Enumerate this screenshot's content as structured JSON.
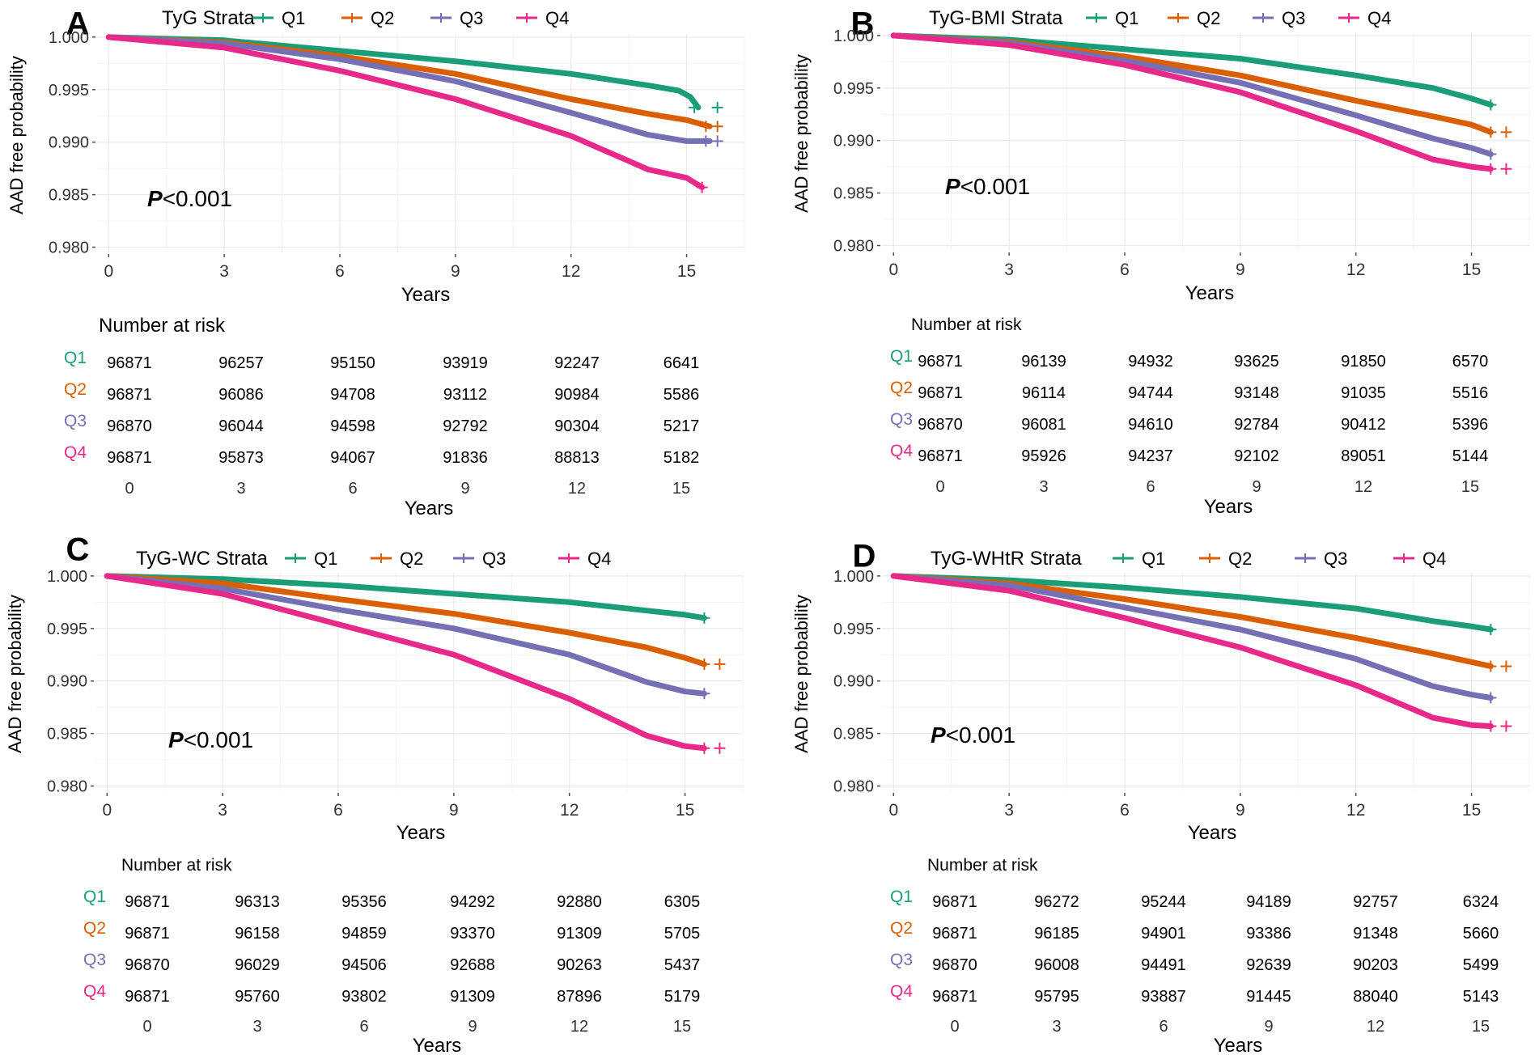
{
  "colors": {
    "Q1": "#1b9e77",
    "Q2": "#d95f02",
    "Q3": "#7570b3",
    "Q4": "#e7298a",
    "grid": "#ebebeb",
    "text": "#000000",
    "tick": "#4d4d4d"
  },
  "chart_data": [
    {
      "type": "line",
      "panel_letter": "A",
      "legend_title": "TyG Strata",
      "legend_position": "top",
      "series_names": [
        "Q1",
        "Q2",
        "Q3",
        "Q4"
      ],
      "ylabel": "AAD free probability",
      "xlabel": "Years",
      "x_ticks": [
        0,
        3,
        6,
        9,
        12,
        15
      ],
      "y_ticks": [
        1.0,
        0.995,
        0.99,
        0.985,
        0.98
      ],
      "y_tick_labels": [
        "1.000",
        "0.995",
        "0.990",
        "0.985",
        "0.980"
      ],
      "xlim": [
        -0.3,
        16.5
      ],
      "ylim": [
        0.9795,
        1.0003
      ],
      "grid": true,
      "p_label": "P",
      "p_rest": "<0.001",
      "series": [
        {
          "name": "Q1",
          "end": 15.3,
          "censor": [
            15.2,
            15.8
          ],
          "points": [
            [
              0,
              1.0
            ],
            [
              3,
              0.9997
            ],
            [
              6,
              0.9987
            ],
            [
              9,
              0.9977
            ],
            [
              12,
              0.9965
            ],
            [
              14,
              0.9954
            ],
            [
              14.8,
              0.9949
            ],
            [
              15.1,
              0.9943
            ],
            [
              15.3,
              0.9933
            ]
          ]
        },
        {
          "name": "Q2",
          "end": 15.6,
          "censor": [
            15.5,
            15.8
          ],
          "points": [
            [
              0,
              1.0
            ],
            [
              3,
              0.9995
            ],
            [
              6,
              0.9982
            ],
            [
              9,
              0.9965
            ],
            [
              12,
              0.9941
            ],
            [
              14,
              0.9927
            ],
            [
              15,
              0.9921
            ],
            [
              15.6,
              0.9915
            ]
          ]
        },
        {
          "name": "Q3",
          "end": 15.6,
          "censor": [
            15.5,
            15.8
          ],
          "points": [
            [
              0,
              1.0
            ],
            [
              3,
              0.9994
            ],
            [
              6,
              0.9979
            ],
            [
              9,
              0.9958
            ],
            [
              12,
              0.9928
            ],
            [
              14,
              0.9907
            ],
            [
              15,
              0.9901
            ],
            [
              15.6,
              0.9901
            ]
          ]
        },
        {
          "name": "Q4",
          "end": 15.4,
          "censor": [
            15.4
          ],
          "points": [
            [
              0,
              1.0
            ],
            [
              3,
              0.999
            ],
            [
              6,
              0.9968
            ],
            [
              9,
              0.9941
            ],
            [
              12,
              0.9906
            ],
            [
              14,
              0.9874
            ],
            [
              15,
              0.9866
            ],
            [
              15.4,
              0.9857
            ]
          ]
        }
      ],
      "risk_table": {
        "title": "Number at risk",
        "rows": [
          {
            "label": "Q1",
            "values": [
              "96871",
              "96257",
              "95150",
              "93919",
              "92247",
              "6641"
            ]
          },
          {
            "label": "Q2",
            "values": [
              "96871",
              "96086",
              "94708",
              "93112",
              "90984",
              "5586"
            ]
          },
          {
            "label": "Q3",
            "values": [
              "96870",
              "96044",
              "94598",
              "92792",
              "90304",
              "5217"
            ]
          },
          {
            "label": "Q4",
            "values": [
              "96871",
              "95873",
              "94067",
              "91836",
              "88813",
              "5182"
            ]
          }
        ],
        "x_ticks": [
          "0",
          "3",
          "6",
          "9",
          "12",
          "15"
        ],
        "xlabel": "Years"
      }
    },
    {
      "type": "line",
      "panel_letter": "B",
      "legend_title": "TyG-BMI Strata",
      "legend_position": "top",
      "series_names": [
        "Q1",
        "Q2",
        "Q3",
        "Q4"
      ],
      "ylabel": "AAD free probability",
      "xlabel": "Years",
      "x_ticks": [
        0,
        3,
        6,
        9,
        12,
        15
      ],
      "y_ticks": [
        1.0,
        0.995,
        0.99,
        0.985,
        0.98
      ],
      "y_tick_labels": [
        "1.000",
        "0.995",
        "0.990",
        "0.985",
        "0.980"
      ],
      "xlim": [
        -0.3,
        16.5
      ],
      "ylim": [
        0.9795,
        1.0003
      ],
      "grid": true,
      "p_label": "P",
      "p_rest": "<0.001",
      "series": [
        {
          "name": "Q1",
          "end": 15.5,
          "censor": [
            15.5
          ],
          "points": [
            [
              0,
              1.0
            ],
            [
              3,
              0.9996
            ],
            [
              6,
              0.9987
            ],
            [
              9,
              0.9978
            ],
            [
              12,
              0.9962
            ],
            [
              14,
              0.995
            ],
            [
              15,
              0.994
            ],
            [
              15.5,
              0.9934
            ]
          ]
        },
        {
          "name": "Q2",
          "end": 15.5,
          "censor": [
            15.5,
            15.9
          ],
          "points": [
            [
              0,
              1.0
            ],
            [
              3,
              0.9994
            ],
            [
              6,
              0.998
            ],
            [
              9,
              0.9962
            ],
            [
              12,
              0.9938
            ],
            [
              14,
              0.9923
            ],
            [
              15,
              0.9915
            ],
            [
              15.5,
              0.9908
            ]
          ]
        },
        {
          "name": "Q3",
          "end": 15.5,
          "censor": [
            15.5
          ],
          "points": [
            [
              0,
              1.0
            ],
            [
              3,
              0.9993
            ],
            [
              6,
              0.9976
            ],
            [
              9,
              0.9955
            ],
            [
              12,
              0.9924
            ],
            [
              14,
              0.9902
            ],
            [
              15,
              0.9893
            ],
            [
              15.5,
              0.9887
            ]
          ]
        },
        {
          "name": "Q4",
          "end": 15.5,
          "censor": [
            15.5,
            15.9
          ],
          "points": [
            [
              0,
              1.0
            ],
            [
              3,
              0.9991
            ],
            [
              6,
              0.9972
            ],
            [
              9,
              0.9946
            ],
            [
              12,
              0.9909
            ],
            [
              14,
              0.9882
            ],
            [
              15,
              0.9875
            ],
            [
              15.5,
              0.9873
            ]
          ]
        }
      ],
      "risk_table": {
        "title": "Number at risk",
        "rows": [
          {
            "label": "Q1",
            "values": [
              "96871",
              "96139",
              "94932",
              "93625",
              "91850",
              "6570"
            ]
          },
          {
            "label": "Q2",
            "values": [
              "96871",
              "96114",
              "94744",
              "93148",
              "91035",
              "5516"
            ]
          },
          {
            "label": "Q3",
            "values": [
              "96870",
              "96081",
              "94610",
              "92784",
              "90412",
              "5396"
            ]
          },
          {
            "label": "Q4",
            "values": [
              "96871",
              "95926",
              "94237",
              "92102",
              "89051",
              "5144"
            ]
          }
        ],
        "x_ticks": [
          "0",
          "3",
          "6",
          "9",
          "12",
          "15"
        ],
        "xlabel": "Years"
      }
    },
    {
      "type": "line",
      "panel_letter": "C",
      "legend_title": "TyG-WC Strata",
      "legend_position": "top",
      "series_names": [
        "Q1",
        "Q2",
        "Q3",
        "Q4"
      ],
      "ylabel": "AAD free probability",
      "xlabel": "Years",
      "x_ticks": [
        0,
        3,
        6,
        9,
        12,
        15
      ],
      "y_ticks": [
        1.0,
        0.995,
        0.99,
        0.985,
        0.98
      ],
      "y_tick_labels": [
        "1.000",
        "0.995",
        "0.990",
        "0.985",
        "0.980"
      ],
      "xlim": [
        -0.3,
        16.5
      ],
      "ylim": [
        0.9795,
        1.0003
      ],
      "grid": true,
      "p_label": "P",
      "p_rest": "<0.001",
      "series": [
        {
          "name": "Q1",
          "end": 15.5,
          "censor": [
            15.5
          ],
          "points": [
            [
              0,
              1.0
            ],
            [
              3,
              0.9997
            ],
            [
              6,
              0.9991
            ],
            [
              9,
              0.9983
            ],
            [
              12,
              0.9975
            ],
            [
              14,
              0.9967
            ],
            [
              15,
              0.9963
            ],
            [
              15.5,
              0.996
            ]
          ]
        },
        {
          "name": "Q2",
          "end": 15.5,
          "censor": [
            15.5,
            15.9
          ],
          "points": [
            [
              0,
              1.0
            ],
            [
              3,
              0.9993
            ],
            [
              6,
              0.9978
            ],
            [
              9,
              0.9964
            ],
            [
              12,
              0.9946
            ],
            [
              14,
              0.9932
            ],
            [
              15,
              0.9922
            ],
            [
              15.5,
              0.9916
            ]
          ]
        },
        {
          "name": "Q3",
          "end": 15.5,
          "censor": [
            15.5
          ],
          "points": [
            [
              0,
              1.0
            ],
            [
              3,
              0.9988
            ],
            [
              6,
              0.9968
            ],
            [
              9,
              0.995
            ],
            [
              12,
              0.9925
            ],
            [
              14,
              0.9899
            ],
            [
              15,
              0.989
            ],
            [
              15.5,
              0.9888
            ]
          ]
        },
        {
          "name": "Q4",
          "end": 15.5,
          "censor": [
            15.5,
            15.9
          ],
          "points": [
            [
              0,
              1.0
            ],
            [
              3,
              0.9983
            ],
            [
              6,
              0.9954
            ],
            [
              9,
              0.9925
            ],
            [
              12,
              0.9883
            ],
            [
              14,
              0.9848
            ],
            [
              15,
              0.9838
            ],
            [
              15.5,
              0.9836
            ]
          ]
        }
      ],
      "risk_table": {
        "title": "Number at risk",
        "rows": [
          {
            "label": "Q1",
            "values": [
              "96871",
              "96313",
              "95356",
              "94292",
              "92880",
              "6305"
            ]
          },
          {
            "label": "Q2",
            "values": [
              "96871",
              "96158",
              "94859",
              "93370",
              "91309",
              "5705"
            ]
          },
          {
            "label": "Q3",
            "values": [
              "96870",
              "96029",
              "94506",
              "92688",
              "90263",
              "5437"
            ]
          },
          {
            "label": "Q4",
            "values": [
              "96871",
              "95760",
              "93802",
              "91309",
              "87896",
              "5179"
            ]
          }
        ],
        "x_ticks": [
          "0",
          "3",
          "6",
          "9",
          "12",
          "15"
        ],
        "xlabel": "Years"
      }
    },
    {
      "type": "line",
      "panel_letter": "D",
      "legend_title": "TyG-WHtR Strata",
      "legend_position": "top",
      "series_names": [
        "Q1",
        "Q2",
        "Q3",
        "Q4"
      ],
      "ylabel": "AAD free probability",
      "xlabel": "Years",
      "x_ticks": [
        0,
        3,
        6,
        9,
        12,
        15
      ],
      "y_ticks": [
        1.0,
        0.995,
        0.99,
        0.985,
        0.98
      ],
      "y_tick_labels": [
        "1.000",
        "0.995",
        "0.990",
        "0.985",
        "0.980"
      ],
      "xlim": [
        -0.3,
        16.5
      ],
      "ylim": [
        0.9795,
        1.0003
      ],
      "grid": true,
      "p_label": "P",
      "p_rest": "<0.001",
      "series": [
        {
          "name": "Q1",
          "end": 15.5,
          "censor": [
            15.5
          ],
          "points": [
            [
              0,
              1.0
            ],
            [
              3,
              0.9996
            ],
            [
              6,
              0.9989
            ],
            [
              9,
              0.998
            ],
            [
              12,
              0.9969
            ],
            [
              14,
              0.9957
            ],
            [
              15,
              0.9952
            ],
            [
              15.5,
              0.9949
            ]
          ]
        },
        {
          "name": "Q2",
          "end": 15.5,
          "censor": [
            15.5,
            15.9
          ],
          "points": [
            [
              0,
              1.0
            ],
            [
              3,
              0.9993
            ],
            [
              6,
              0.9978
            ],
            [
              9,
              0.9961
            ],
            [
              12,
              0.9941
            ],
            [
              14,
              0.9926
            ],
            [
              15,
              0.9918
            ],
            [
              15.5,
              0.9914
            ]
          ]
        },
        {
          "name": "Q3",
          "end": 15.5,
          "censor": [
            15.5
          ],
          "points": [
            [
              0,
              1.0
            ],
            [
              3,
              0.9991
            ],
            [
              6,
              0.997
            ],
            [
              9,
              0.9949
            ],
            [
              12,
              0.9921
            ],
            [
              14,
              0.9895
            ],
            [
              15,
              0.9887
            ],
            [
              15.5,
              0.9884
            ]
          ]
        },
        {
          "name": "Q4",
          "end": 15.5,
          "censor": [
            15.5,
            15.9
          ],
          "points": [
            [
              0,
              1.0
            ],
            [
              3,
              0.9986
            ],
            [
              6,
              0.996
            ],
            [
              9,
              0.9932
            ],
            [
              12,
              0.9896
            ],
            [
              14,
              0.9865
            ],
            [
              15,
              0.9858
            ],
            [
              15.5,
              0.9857
            ]
          ]
        }
      ],
      "risk_table": {
        "title": "Number at risk",
        "rows": [
          {
            "label": "Q1",
            "values": [
              "96871",
              "96272",
              "95244",
              "94189",
              "92757",
              "6324"
            ]
          },
          {
            "label": "Q2",
            "values": [
              "96871",
              "96185",
              "94901",
              "93386",
              "91348",
              "5660"
            ]
          },
          {
            "label": "Q3",
            "values": [
              "96870",
              "96008",
              "94491",
              "92639",
              "90203",
              "5499"
            ]
          },
          {
            "label": "Q4",
            "values": [
              "96871",
              "95795",
              "93887",
              "91445",
              "88040",
              "5143"
            ]
          }
        ],
        "x_ticks": [
          "0",
          "3",
          "6",
          "9",
          "12",
          "15"
        ],
        "xlabel": "Years"
      }
    }
  ]
}
